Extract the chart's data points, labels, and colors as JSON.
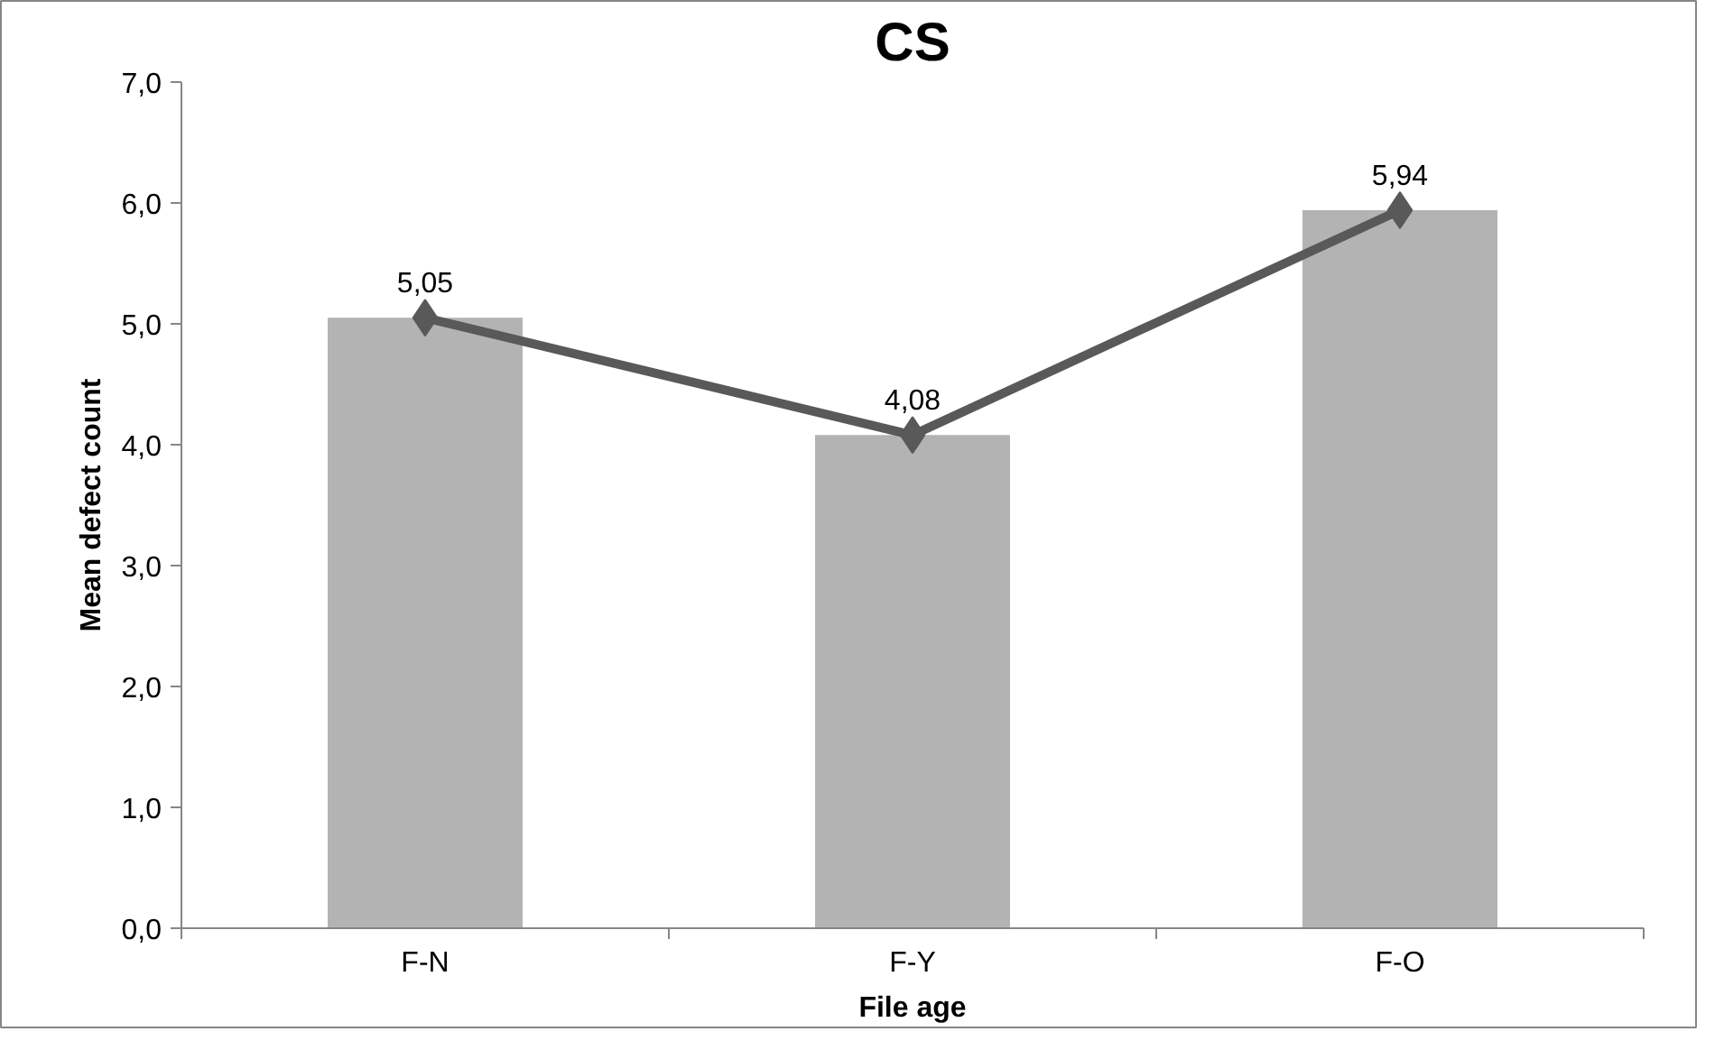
{
  "chart_data": {
    "type": "bar",
    "title": "CS",
    "xlabel": "File age",
    "ylabel": "Mean defect count",
    "categories": [
      "F-N",
      "F-Y",
      "F-O"
    ],
    "series": [
      {
        "color": "#b3b3b3",
        "values": [
          5.05,
          4.08,
          5.94
        ]
      },
      {
        "type": "line",
        "color": "#595959",
        "values": [
          5.05,
          4.08,
          5.94
        ],
        "marker": "diamond",
        "value_labels": [
          "5,05",
          "4,08",
          "5,94"
        ]
      }
    ],
    "ylim": [
      0,
      7
    ],
    "yticks": [
      {
        "value": 0,
        "label": "0,0"
      },
      {
        "value": 1,
        "label": "1,0"
      },
      {
        "value": 2,
        "label": "2,0"
      },
      {
        "value": 3,
        "label": "3,0"
      },
      {
        "value": 4,
        "label": "4,0"
      },
      {
        "value": 5,
        "label": "5,0"
      },
      {
        "value": 6,
        "label": "6,0"
      },
      {
        "value": 7,
        "label": "7,0"
      }
    ],
    "grid": false
  }
}
